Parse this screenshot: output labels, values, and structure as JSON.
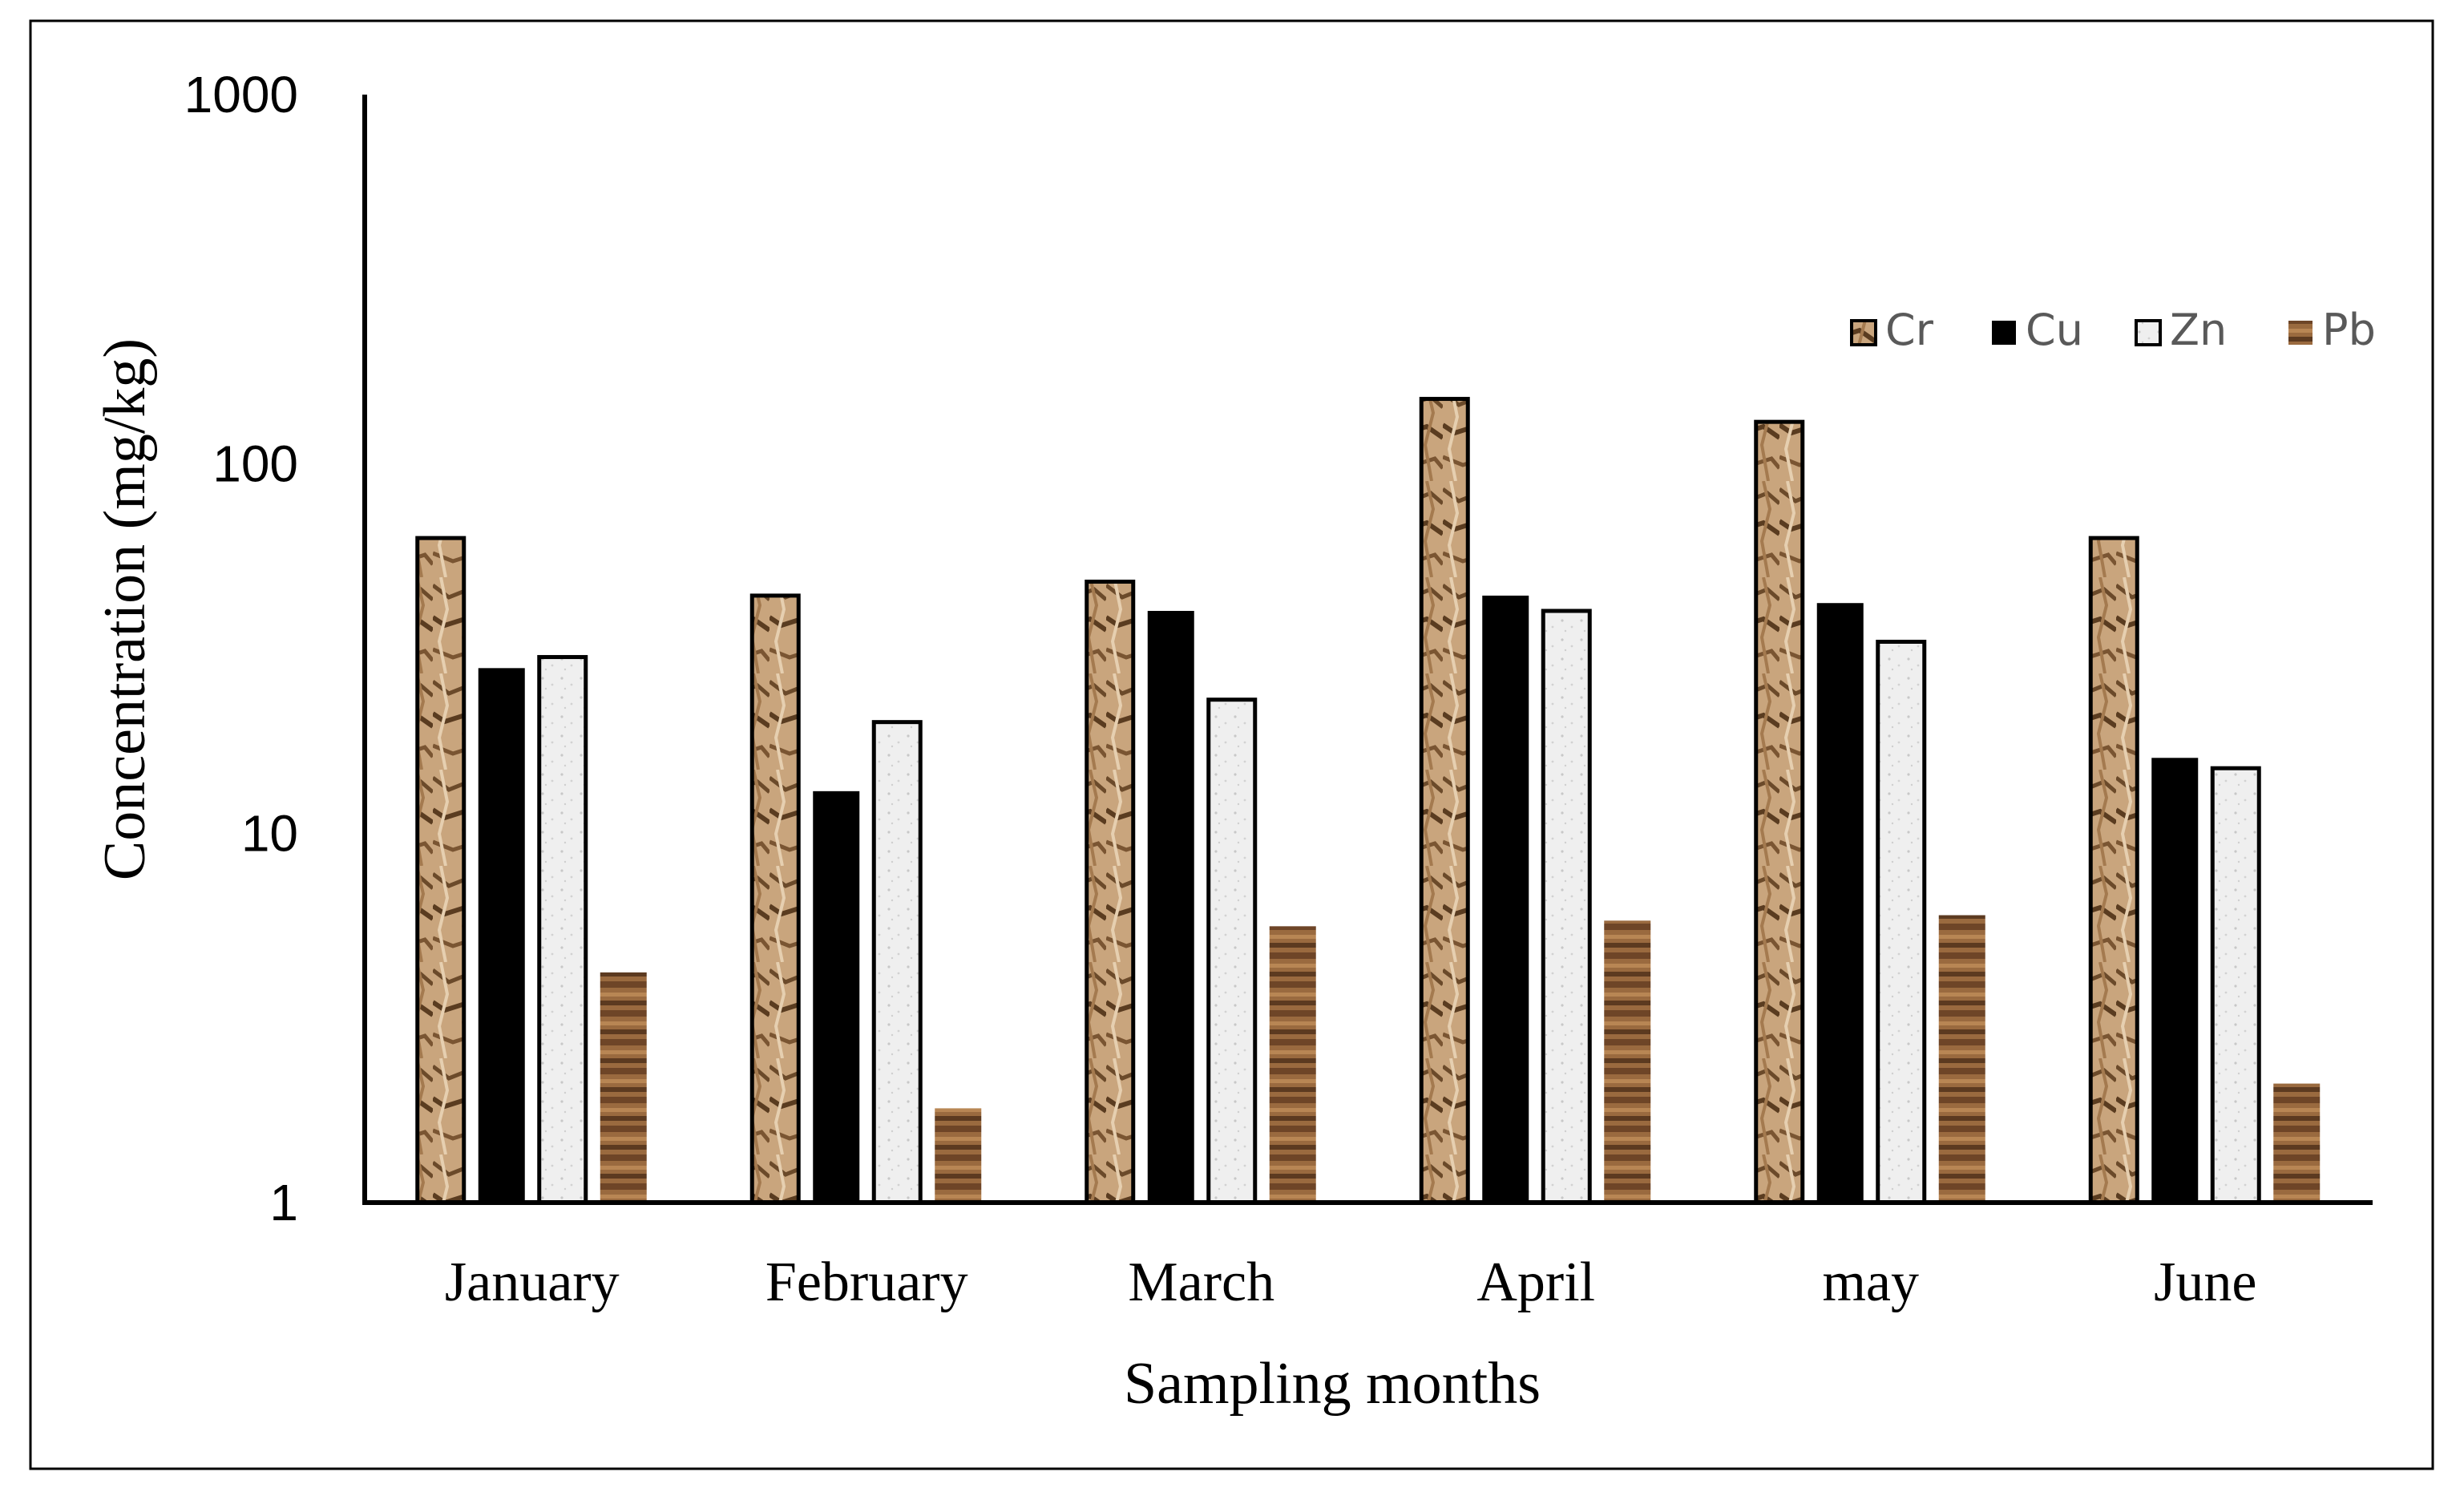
{
  "chart_data": {
    "type": "bar",
    "scale": "log",
    "title": "",
    "xlabel": "Sampling months",
    "ylabel": "Concentration (mg/kg)",
    "ylim": [
      1,
      1000
    ],
    "yticks": [
      1,
      10,
      100,
      1000
    ],
    "ytick_labels": [
      "1",
      "10",
      "100",
      "1000"
    ],
    "categories": [
      "January",
      "February",
      "March",
      "April",
      "may",
      "June"
    ],
    "series": [
      {
        "name": "Cr",
        "values": [
          63,
          44,
          48,
          150,
          130,
          63
        ],
        "color": "#b08a5e"
      },
      {
        "name": "Cu",
        "values": [
          28,
          13,
          40,
          44,
          42,
          16
        ],
        "color": "#000000"
      },
      {
        "name": "Zn",
        "values": [
          30,
          20,
          23,
          40,
          33,
          15
        ],
        "color": "#ececec"
      },
      {
        "name": "Pb",
        "values": [
          4.2,
          1.8,
          5.6,
          5.8,
          6.0,
          2.1
        ],
        "color": "#8b5a33"
      }
    ],
    "legend_position": "top-right",
    "grid": false
  }
}
